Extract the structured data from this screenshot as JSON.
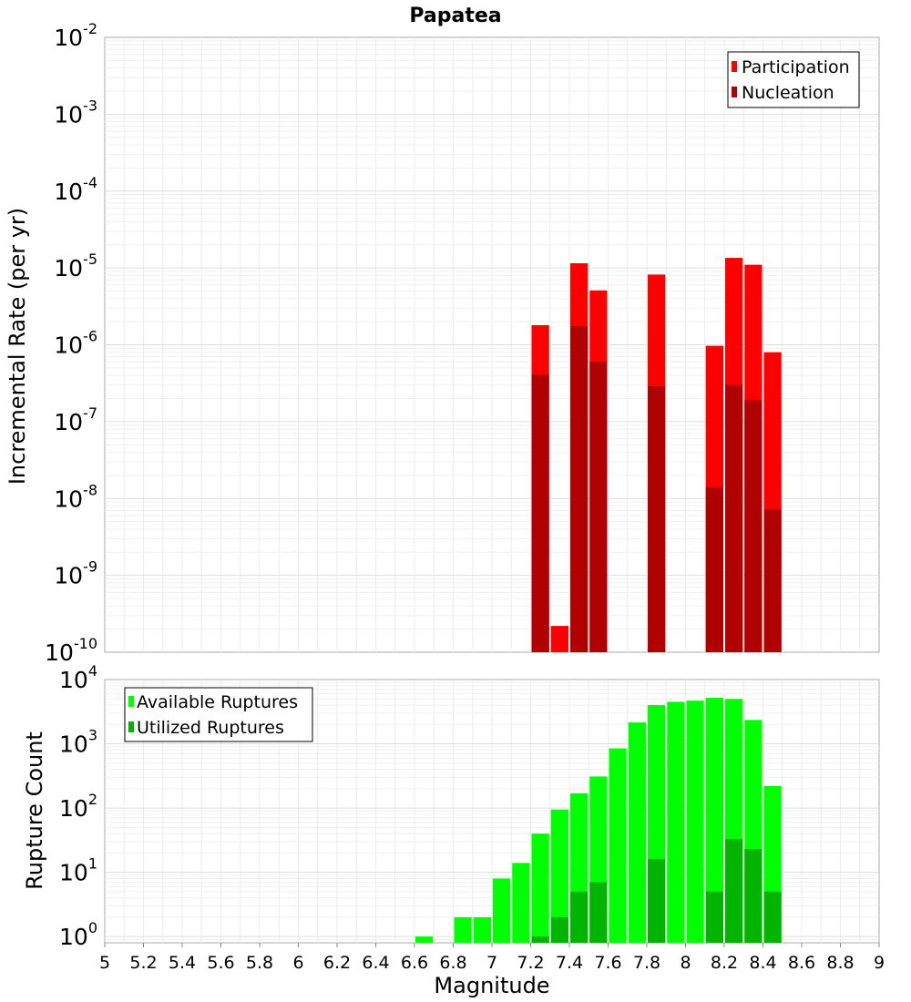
{
  "chart_data": [
    {
      "type": "bar",
      "title": "Papatea",
      "ylabel": "Incremental Rate (per yr)",
      "xlabel": "",
      "yscale": "log",
      "ylim": [
        1e-10,
        0.01
      ],
      "xlim": [
        5,
        9
      ],
      "bin_width": 0.1,
      "legend": "top-right",
      "y_ticks": [
        {
          "base": "10",
          "exp": "-2",
          "value": 0.01
        },
        {
          "base": "10",
          "exp": "-3",
          "value": 0.001
        },
        {
          "base": "10",
          "exp": "-4",
          "value": 0.0001
        },
        {
          "base": "10",
          "exp": "-5",
          "value": 1e-05
        },
        {
          "base": "10",
          "exp": "-6",
          "value": 1e-06
        },
        {
          "base": "10",
          "exp": "-7",
          "value": 1e-07
        },
        {
          "base": "10",
          "exp": "-8",
          "value": 1e-08
        },
        {
          "base": "10",
          "exp": "-9",
          "value": 1e-09
        },
        {
          "base": "10",
          "exp": "-10",
          "value": 1e-10
        }
      ],
      "series": [
        {
          "name": "Participation",
          "color": "#ff0000",
          "x": [
            7.25,
            7.35,
            7.45,
            7.55,
            7.85,
            8.15,
            8.25,
            8.35,
            8.45
          ],
          "values": [
            1.8e-06,
            2.2e-10,
            1.15e-05,
            5.1e-06,
            8.2e-06,
            9.7e-07,
            1.35e-05,
            1.1e-05,
            8e-07
          ]
        },
        {
          "name": "Nucleation",
          "color": "#b00000",
          "x": [
            7.25,
            7.45,
            7.55,
            7.85,
            8.15,
            8.25,
            8.35,
            8.45
          ],
          "values": [
            4.1e-07,
            1.75e-06,
            6e-07,
            2.9e-07,
            1.4e-08,
            3e-07,
            1.9e-07,
            7.2e-09
          ]
        }
      ]
    },
    {
      "type": "bar",
      "title": "",
      "ylabel": "Rupture Count",
      "xlabel": "Magnitude",
      "yscale": "log",
      "ylim": [
        0.8,
        10000.0
      ],
      "xlim": [
        5,
        9
      ],
      "bin_width": 0.1,
      "legend": "top-left",
      "y_ticks": [
        {
          "base": "10",
          "exp": "4",
          "value": 10000.0
        },
        {
          "base": "10",
          "exp": "3",
          "value": 1000.0
        },
        {
          "base": "10",
          "exp": "2",
          "value": 100.0
        },
        {
          "base": "10",
          "exp": "1",
          "value": 10.0
        },
        {
          "base": "10",
          "exp": "0",
          "value": 1
        }
      ],
      "x_ticks": [
        "5",
        "5.2",
        "5.4",
        "5.6",
        "5.8",
        "6",
        "6.2",
        "6.4",
        "6.6",
        "6.8",
        "7",
        "7.2",
        "7.4",
        "7.6",
        "7.8",
        "8",
        "8.2",
        "8.4",
        "8.6",
        "8.8",
        "9"
      ],
      "series": [
        {
          "name": "Available Ruptures",
          "color": "#00ff00",
          "x": [
            6.65,
            6.85,
            6.95,
            7.05,
            7.15,
            7.25,
            7.35,
            7.45,
            7.55,
            7.65,
            7.75,
            7.85,
            7.95,
            8.05,
            8.15,
            8.25,
            8.35,
            8.45
          ],
          "values": [
            1,
            2,
            2,
            8,
            14,
            40,
            95,
            170,
            310,
            850,
            2150,
            4000,
            4500,
            4700,
            5200,
            5000,
            2350,
            220
          ]
        },
        {
          "name": "Utilized Ruptures",
          "color": "#00b400",
          "x": [
            7.25,
            7.35,
            7.45,
            7.55,
            7.85,
            8.15,
            8.25,
            8.35,
            8.45
          ],
          "values": [
            1,
            2,
            5,
            7,
            16,
            5,
            33,
            23,
            5
          ]
        }
      ]
    }
  ]
}
